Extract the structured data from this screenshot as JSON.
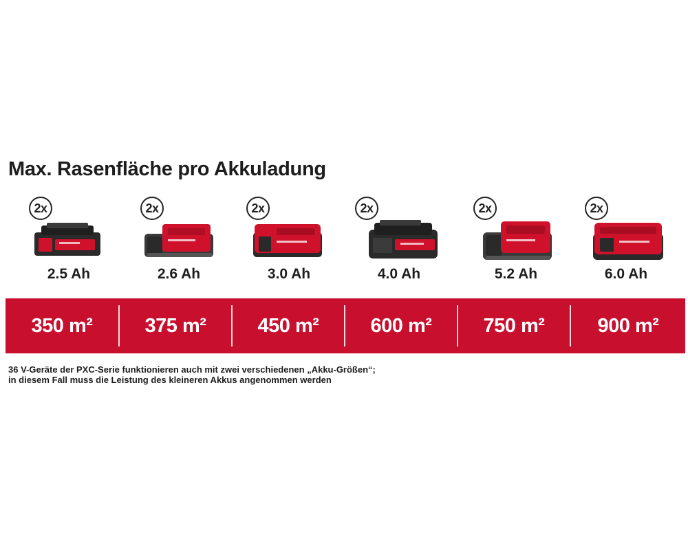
{
  "title": "Max. Rasenfläche pro Akkuladung",
  "colors": {
    "accent": "#c8102e",
    "battery_dark": "#2a2a2a",
    "battery_red": "#d0112b"
  },
  "batteries": [
    {
      "qty": "2x",
      "capacity": "2.5 Ah",
      "area": "350 m²",
      "icon": "battery-pack-icon"
    },
    {
      "qty": "2x",
      "capacity": "2.6 Ah",
      "area": "375 m²",
      "icon": "battery-pack-icon"
    },
    {
      "qty": "2x",
      "capacity": "3.0 Ah",
      "area": "450 m²",
      "icon": "battery-pack-icon"
    },
    {
      "qty": "2x",
      "capacity": "4.0 Ah",
      "area": "600 m²",
      "icon": "battery-pack-icon"
    },
    {
      "qty": "2x",
      "capacity": "5.2 Ah",
      "area": "750 m²",
      "icon": "battery-pack-icon"
    },
    {
      "qty": "2x",
      "capacity": "6.0 Ah",
      "area": "900 m²",
      "icon": "battery-pack-icon"
    }
  ],
  "footnote": {
    "line1": "36 V-Geräte der PXC-Serie funktionieren auch mit zwei verschiedenen „Akku-Größen“;",
    "line2": "in diesem Fall muss die Leistung des kleineren Akkus angenommen werden"
  }
}
